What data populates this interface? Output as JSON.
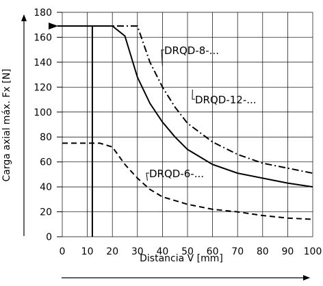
{
  "chart_data": {
    "type": "line",
    "title": "",
    "xlabel": "Distancia V [mm]",
    "ylabel": "Carga axial máx. Fx [N]",
    "xlim": [
      0,
      100
    ],
    "ylim": [
      0,
      180
    ],
    "x_ticks": [
      "0",
      "10",
      "20",
      "30",
      "40",
      "50",
      "60",
      "70",
      "80",
      "90",
      "100"
    ],
    "y_ticks": [
      "0",
      "20",
      "40",
      "60",
      "80",
      "100",
      "120",
      "140",
      "160",
      "180"
    ],
    "grid": true,
    "series": [
      {
        "name": "DRQD-12-...",
        "style": "dash-dot",
        "x": [
          0,
          30,
          35,
          40,
          45,
          50,
          60,
          70,
          80,
          90,
          100
        ],
        "y": [
          169,
          169,
          140,
          120,
          104,
          91,
          76,
          66,
          59,
          55,
          51
        ]
      },
      {
        "name": "DRQD-8-...",
        "style": "solid",
        "x": [
          0,
          20,
          25,
          30,
          35,
          40,
          45,
          50,
          60,
          70,
          80,
          90,
          100
        ],
        "y": [
          169,
          169,
          161,
          128,
          107,
          92,
          80,
          70,
          58,
          51,
          47,
          43,
          40
        ]
      },
      {
        "name": "DRQD-6-...",
        "style": "dashed",
        "x": [
          0,
          15,
          20,
          25,
          30,
          35,
          40,
          50,
          60,
          70,
          80,
          90,
          100
        ],
        "y": [
          75,
          75,
          72,
          58,
          47,
          38,
          32,
          26,
          22,
          20,
          17,
          15,
          14
        ]
      }
    ],
    "vertical_line": {
      "x": 12,
      "y_from": 0,
      "y_to": 169
    }
  }
}
